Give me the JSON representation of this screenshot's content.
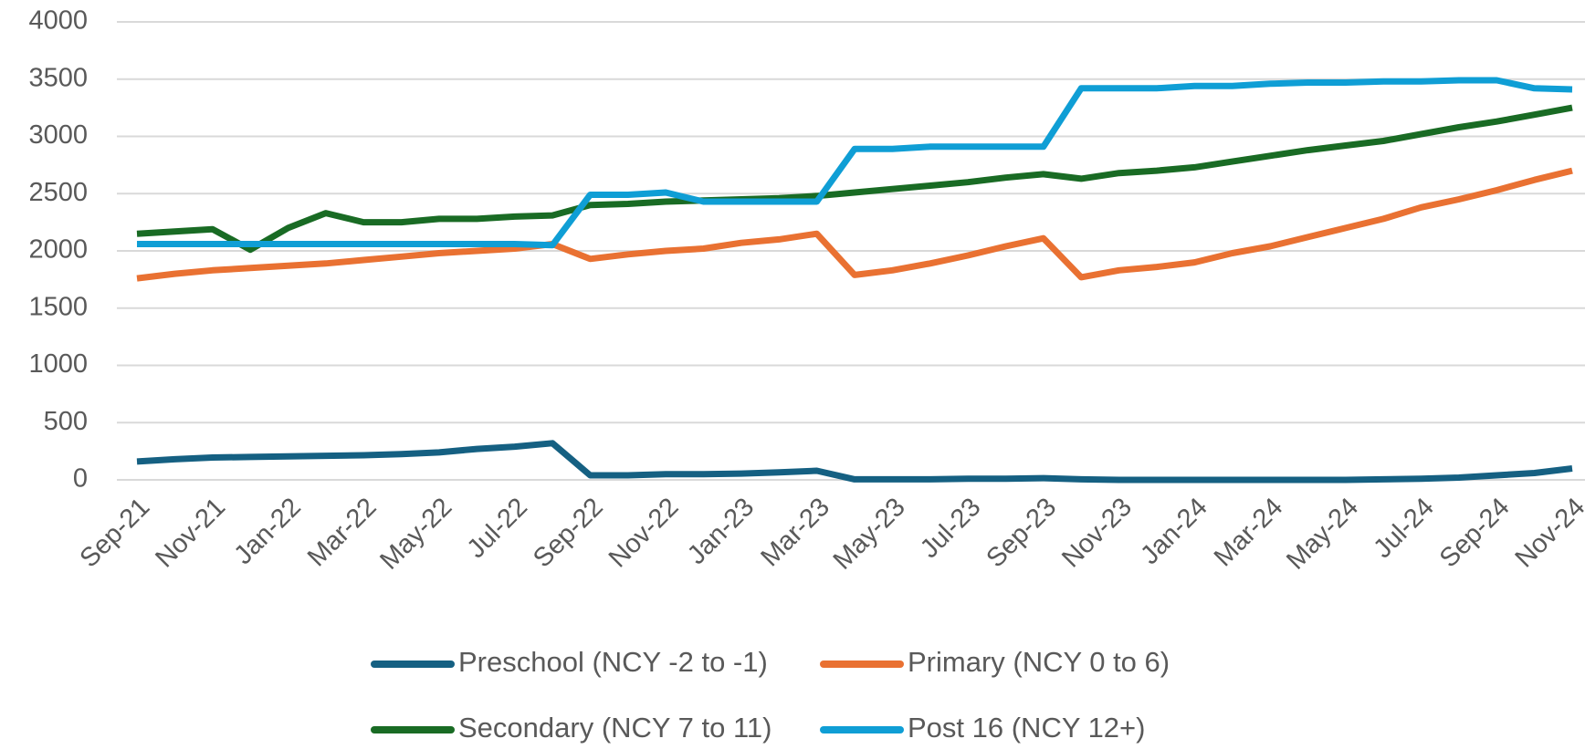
{
  "chart_data": {
    "type": "line",
    "categories": [
      "Sep-21",
      null,
      "Nov-21",
      null,
      "Jan-22",
      null,
      "Mar-22",
      null,
      "May-22",
      null,
      "Jul-22",
      null,
      "Sep-22",
      null,
      "Nov-22",
      null,
      "Jan-23",
      null,
      "Mar-23",
      null,
      "May-23",
      null,
      "Jul-23",
      null,
      "Sep-23",
      null,
      "Nov-23",
      null,
      "Jan-24",
      null,
      "Mar-24",
      null,
      "May-24",
      null,
      "Jul-24",
      null,
      "Sep-24",
      null,
      "Nov-24"
    ],
    "series": [
      {
        "name": "Preschool (NCY -2 to -1)",
        "color": "#156082",
        "values": [
          160,
          180,
          195,
          200,
          205,
          210,
          215,
          225,
          240,
          270,
          290,
          320,
          40,
          40,
          50,
          50,
          55,
          65,
          80,
          5,
          5,
          5,
          10,
          10,
          15,
          5,
          0,
          0,
          0,
          0,
          0,
          0,
          0,
          5,
          10,
          20,
          40,
          60,
          100
        ]
      },
      {
        "name": "Primary (NCY 0 to 6)",
        "color": "#e97132",
        "values": [
          1760,
          1800,
          1830,
          1850,
          1870,
          1890,
          1920,
          1950,
          1980,
          2000,
          2020,
          2060,
          1930,
          1970,
          2000,
          2020,
          2070,
          2100,
          2150,
          1790,
          1830,
          1890,
          1960,
          2040,
          2110,
          1770,
          1830,
          1860,
          1900,
          1980,
          2040,
          2120,
          2200,
          2280,
          2380,
          2450,
          2530,
          2620,
          2700
        ]
      },
      {
        "name": "Secondary (NCY 7 to 11)",
        "color": "#196b24",
        "values": [
          2150,
          2170,
          2190,
          2010,
          2200,
          2330,
          2250,
          2250,
          2280,
          2280,
          2300,
          2310,
          2400,
          2410,
          2430,
          2440,
          2450,
          2460,
          2480,
          2510,
          2540,
          2570,
          2600,
          2640,
          2670,
          2630,
          2680,
          2700,
          2730,
          2780,
          2830,
          2880,
          2920,
          2960,
          3020,
          3080,
          3130,
          3190,
          3250
        ]
      },
      {
        "name": "Post 16 (NCY 12+)",
        "color": "#0f9ed5",
        "values": [
          2060,
          2060,
          2060,
          2060,
          2060,
          2060,
          2060,
          2060,
          2060,
          2060,
          2060,
          2050,
          2490,
          2490,
          2510,
          2430,
          2430,
          2430,
          2430,
          2890,
          2890,
          2910,
          2910,
          2910,
          2910,
          3420,
          3420,
          3420,
          3440,
          3440,
          3460,
          3470,
          3470,
          3480,
          3480,
          3490,
          3490,
          3420,
          3410
        ]
      }
    ],
    "ylim": [
      0,
      4000
    ],
    "yticks": [
      0,
      500,
      1000,
      1500,
      2000,
      2500,
      3000,
      3500,
      4000
    ],
    "grid": true
  }
}
